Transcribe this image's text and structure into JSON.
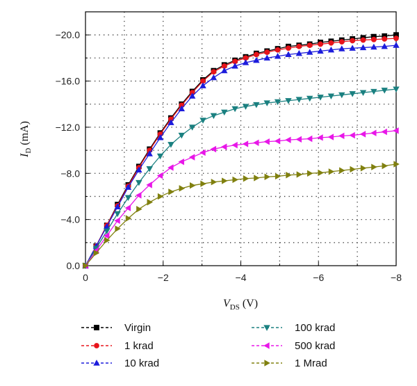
{
  "chart_data": {
    "type": "line",
    "xlabel_main": "V",
    "xlabel_sub": "DS",
    "xlabel_unit": " (V)",
    "ylabel_main": "I",
    "ylabel_sub": "D",
    "ylabel_unit": " (mA)",
    "xlim": [
      0,
      -8
    ],
    "ylim": [
      0,
      -22
    ],
    "x_ticks": [
      0,
      -2,
      -4,
      -6,
      -8
    ],
    "x_tick_labels": [
      "0",
      "−2",
      "−4",
      "−6",
      "−8"
    ],
    "y_ticks": [
      0,
      -4,
      -8,
      -12,
      -16,
      -20
    ],
    "y_tick_labels": [
      "0.0",
      "−4.0",
      "−8.0",
      "−12.0",
      "−16.0",
      "−20.0"
    ],
    "grid": true,
    "legend_position": "bottom",
    "x": [
      0,
      -0.275,
      -0.55,
      -0.825,
      -1.1,
      -1.375,
      -1.65,
      -1.925,
      -2.2,
      -2.475,
      -2.75,
      -3.025,
      -3.3,
      -3.575,
      -3.85,
      -4.125,
      -4.4,
      -4.675,
      -4.95,
      -5.225,
      -5.5,
      -5.775,
      -6.05,
      -6.325,
      -6.6,
      -6.875,
      -7.15,
      -7.425,
      -7.7,
      -8.0
    ],
    "series": [
      {
        "name": "Virgin",
        "color": "#000000",
        "marker": "square",
        "values": [
          0,
          -1.7,
          -3.5,
          -5.3,
          -7.0,
          -8.6,
          -10.1,
          -11.5,
          -12.8,
          -14.0,
          -15.1,
          -16.1,
          -16.9,
          -17.4,
          -17.8,
          -18.1,
          -18.4,
          -18.6,
          -18.8,
          -19.0,
          -19.1,
          -19.2,
          -19.35,
          -19.45,
          -19.55,
          -19.65,
          -19.75,
          -19.85,
          -19.9,
          -20.0
        ]
      },
      {
        "name": "1 krad",
        "color": "#e8141b",
        "marker": "circle",
        "values": [
          0,
          -1.7,
          -3.5,
          -5.2,
          -6.9,
          -8.5,
          -10.0,
          -11.4,
          -12.7,
          -13.9,
          -15.0,
          -16.0,
          -16.8,
          -17.3,
          -17.7,
          -18.0,
          -18.3,
          -18.5,
          -18.7,
          -18.85,
          -19.0,
          -19.1,
          -19.2,
          -19.3,
          -19.4,
          -19.5,
          -19.55,
          -19.6,
          -19.65,
          -19.7
        ]
      },
      {
        "name": "10 krad",
        "color": "#1c1cdc",
        "marker": "triangle-up",
        "values": [
          0,
          -1.7,
          -3.4,
          -5.1,
          -6.8,
          -8.3,
          -9.7,
          -11.1,
          -12.4,
          -13.6,
          -14.7,
          -15.6,
          -16.3,
          -16.9,
          -17.3,
          -17.6,
          -17.8,
          -18.0,
          -18.15,
          -18.3,
          -18.4,
          -18.5,
          -18.6,
          -18.7,
          -18.8,
          -18.85,
          -18.9,
          -18.95,
          -19.0,
          -19.1
        ]
      },
      {
        "name": "100 krad",
        "color": "#1a8080",
        "marker": "triangle-down",
        "values": [
          0,
          -1.5,
          -3.0,
          -4.5,
          -5.9,
          -7.2,
          -8.4,
          -9.5,
          -10.5,
          -11.3,
          -12.0,
          -12.6,
          -13.0,
          -13.3,
          -13.6,
          -13.8,
          -13.95,
          -14.1,
          -14.2,
          -14.3,
          -14.4,
          -14.5,
          -14.6,
          -14.7,
          -14.8,
          -14.9,
          -15.0,
          -15.1,
          -15.2,
          -15.3
        ]
      },
      {
        "name": "500 krad",
        "color": "#e817e8",
        "marker": "triangle-left",
        "values": [
          0,
          -1.3,
          -2.6,
          -3.9,
          -5.0,
          -6.1,
          -7.0,
          -7.8,
          -8.5,
          -9.0,
          -9.4,
          -9.8,
          -10.1,
          -10.3,
          -10.45,
          -10.55,
          -10.65,
          -10.75,
          -10.8,
          -10.9,
          -10.95,
          -11.0,
          -11.1,
          -11.15,
          -11.25,
          -11.3,
          -11.4,
          -11.5,
          -11.6,
          -11.7
        ]
      },
      {
        "name": "1 Mrad",
        "color": "#80800f",
        "marker": "triangle-right",
        "values": [
          0,
          -1.1,
          -2.2,
          -3.2,
          -4.1,
          -4.9,
          -5.5,
          -6.0,
          -6.4,
          -6.7,
          -6.95,
          -7.1,
          -7.25,
          -7.35,
          -7.45,
          -7.55,
          -7.6,
          -7.7,
          -7.75,
          -7.85,
          -7.9,
          -8.0,
          -8.05,
          -8.15,
          -8.25,
          -8.35,
          -8.45,
          -8.55,
          -8.65,
          -8.8
        ]
      }
    ]
  }
}
